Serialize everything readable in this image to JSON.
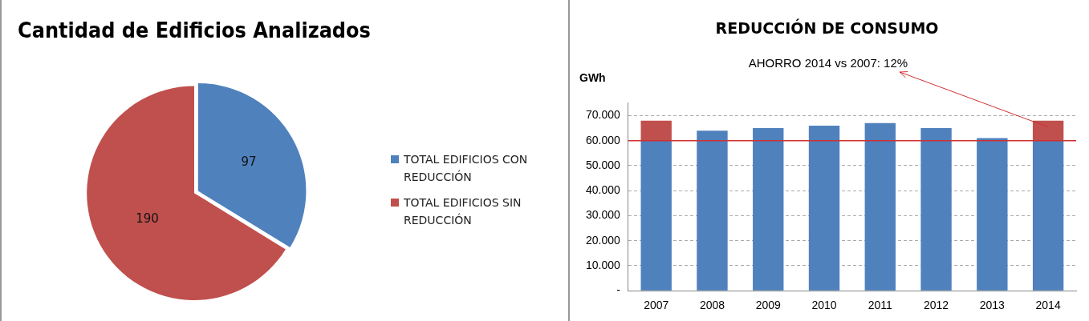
{
  "chart_data": [
    {
      "type": "pie",
      "title": "Cantidad de Edificios Analizados",
      "categories": [
        "TOTAL EDIFICIOS CON REDUCCIÓN",
        "TOTAL EDIFICIOS SIN REDUCCIÓN"
      ],
      "values": [
        97,
        190
      ],
      "colors": [
        "#4f81bd",
        "#c0504d"
      ],
      "data_labels": true,
      "legend": "right"
    },
    {
      "type": "bar",
      "title": "REDUCCIÓN DE CONSUMO",
      "ylabel": "GWh",
      "categories": [
        "2007",
        "2008",
        "2009",
        "2010",
        "2011",
        "2012",
        "2013",
        "2014"
      ],
      "stacked": true,
      "series": [
        {
          "color": "#4f81bd",
          "values": [
            60000,
            64000,
            65000,
            66000,
            67000,
            65000,
            61000,
            60000
          ]
        },
        {
          "color": "#c0504d",
          "values": [
            8000,
            null,
            null,
            null,
            null,
            null,
            null,
            8000
          ]
        }
      ],
      "ylim": [
        0,
        75000
      ],
      "yticks": [
        {
          "value": 0,
          "label": "-"
        },
        {
          "value": 10000,
          "label": "10.000"
        },
        {
          "value": 20000,
          "label": "20.000"
        },
        {
          "value": 30000,
          "label": "30.000"
        },
        {
          "value": 40000,
          "label": "40.000"
        },
        {
          "value": 50000,
          "label": "50.000"
        },
        {
          "value": 60000,
          "label": "60.000"
        },
        {
          "value": 70000,
          "label": "70.000"
        }
      ],
      "grid": "y",
      "legend": false,
      "ref_lines": [
        {
          "axis": "y",
          "value": 60000,
          "color": "#d03030"
        }
      ],
      "annotations": [
        {
          "text": "AHORRO 2014 vs 2007: 12%",
          "x": "2014",
          "y": 68000
        }
      ]
    }
  ]
}
